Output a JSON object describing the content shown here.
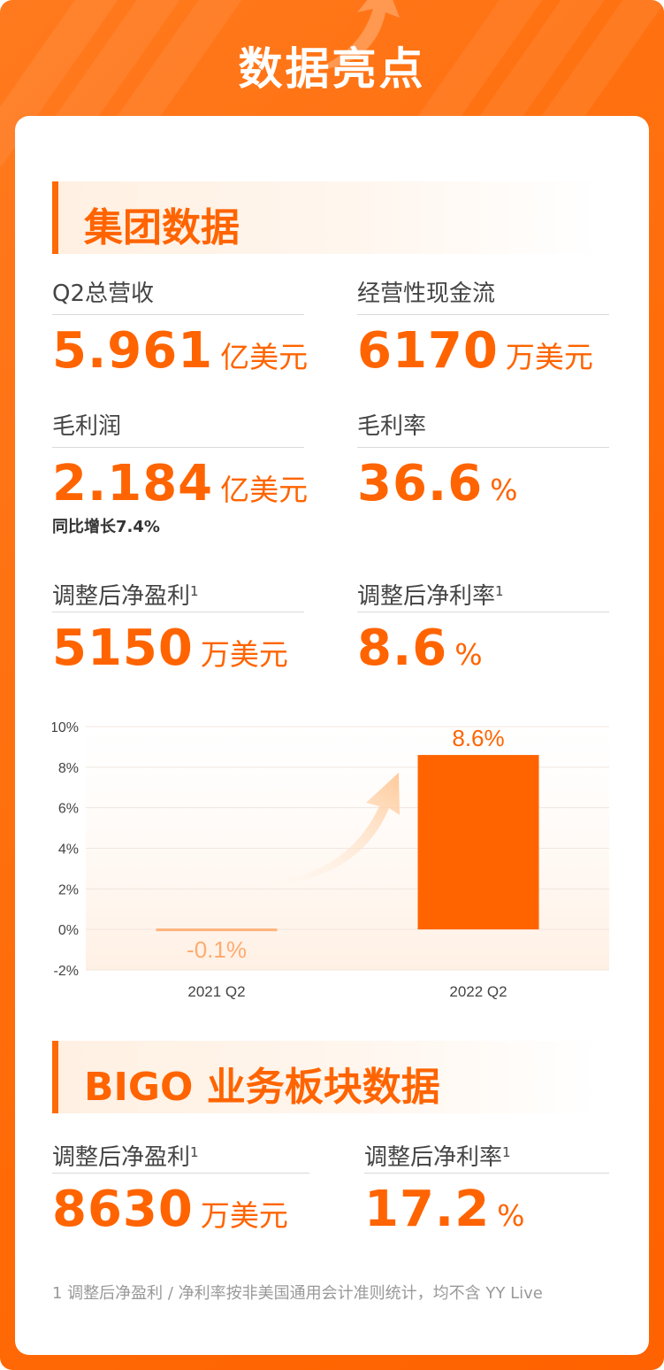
{
  "header": {
    "title": "数据亮点"
  },
  "group": {
    "title": "集团数据",
    "metrics": [
      {
        "label": "Q2总营收",
        "value": "5.961",
        "unit": "亿美元"
      },
      {
        "label": "经营性现金流",
        "value": "6170",
        "unit": "万美元"
      },
      {
        "label": "毛利润",
        "value": "2.184",
        "unit": "亿美元",
        "note": "同比增长7.4%"
      },
      {
        "label": "毛利率",
        "value": "36.6",
        "unit": "%"
      },
      {
        "label": "调整后净盈利",
        "sup": "1",
        "value": "5150",
        "unit": "万美元"
      },
      {
        "label": "调整后净利率",
        "sup": "1",
        "value": "8.6",
        "unit": "%"
      }
    ]
  },
  "chart_data": {
    "type": "bar",
    "categories": [
      "2021 Q2",
      "2022 Q2"
    ],
    "values": [
      -0.1,
      8.6
    ],
    "data_labels": [
      "-0.1%",
      "8.6%"
    ],
    "ylim": [
      -2,
      10
    ],
    "yticks": [
      "-2%",
      "0%",
      "2%",
      "4%",
      "6%",
      "8%",
      "10%"
    ],
    "grid": true,
    "colors": {
      "bar": "#ff6400",
      "negative_bar": "#ffb27a",
      "negative_label": "#ffab70",
      "positive_label": "#ff6400"
    }
  },
  "bigo": {
    "title": "BIGO 业务板块数据",
    "metrics": [
      {
        "label": "调整后净盈利",
        "sup": "1",
        "value": "8630",
        "unit": "万美元"
      },
      {
        "label": "调整后净利率",
        "sup": "1",
        "value": "17.2",
        "unit": "%"
      }
    ]
  },
  "footnote": "1  调整后净盈利 / 净利率按非美国通用会计准则统计，均不含 YY Live"
}
